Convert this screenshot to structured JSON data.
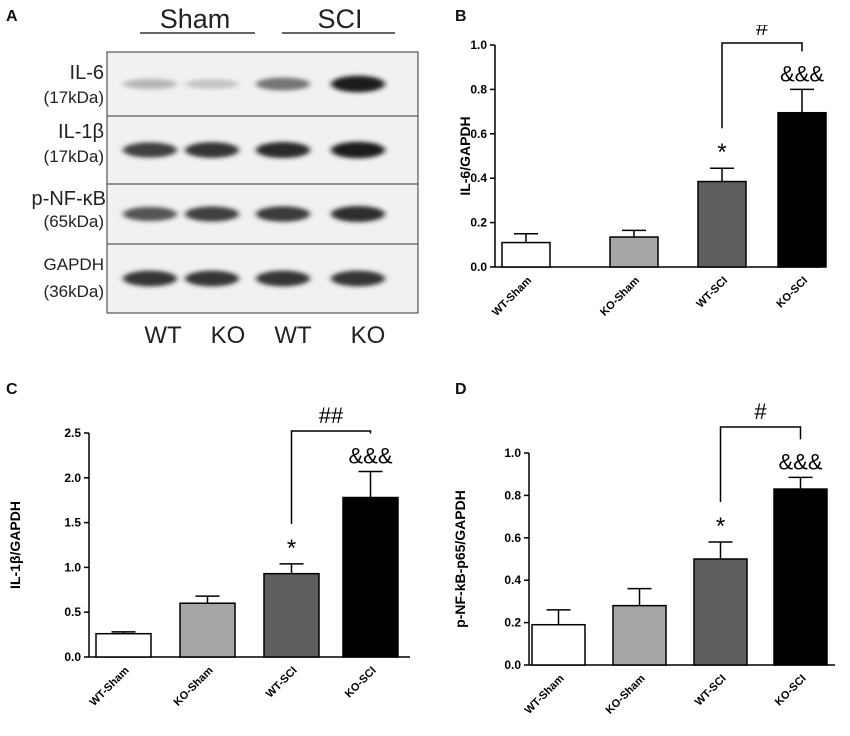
{
  "panels": {
    "a": "A",
    "b": "B",
    "c": "C",
    "d": "D"
  },
  "blot": {
    "groups": [
      "Sham",
      "SCI"
    ],
    "lanes": [
      "WT",
      "KO",
      "WT",
      "KO"
    ],
    "rows": [
      {
        "name": "IL-6",
        "size": "(17kDa)",
        "intensities": [
          0.25,
          0.18,
          0.55,
          0.95
        ]
      },
      {
        "name": "IL-1β",
        "size": "(17kDa)",
        "intensities": [
          0.8,
          0.85,
          0.9,
          0.95
        ]
      },
      {
        "name": "p-NF-κB",
        "size": "(65kDa)",
        "intensities": [
          0.7,
          0.8,
          0.82,
          0.88
        ]
      },
      {
        "name": "GAPDH",
        "size": "(36kDa)",
        "intensities": [
          0.85,
          0.85,
          0.85,
          0.85
        ]
      }
    ]
  },
  "colors": {
    "wt_sham": "#ffffff",
    "ko_sham": "#a6a6a6",
    "wt_sci": "#5e5e5e",
    "ko_sci": "#000000"
  },
  "chart_data": [
    {
      "id": "B",
      "type": "bar",
      "categories": [
        "WT-Sham",
        "KO-Sham",
        "WT-SCI",
        "KO-SCI"
      ],
      "values": [
        0.11,
        0.135,
        0.385,
        0.695
      ],
      "errors": [
        0.04,
        0.03,
        0.06,
        0.105
      ],
      "ylabel": "IL-6/GAPDH",
      "ylim": [
        0,
        1.0
      ],
      "yticks": [
        "0.0",
        "0.2",
        "0.4",
        "0.6",
        "0.8",
        "1.0"
      ],
      "yticks_values": [
        0,
        0.2,
        0.4,
        0.6,
        0.8,
        1.0
      ],
      "star_label": "*",
      "amp_label": "&&&",
      "hash_label": "#"
    },
    {
      "id": "C",
      "type": "bar",
      "categories": [
        "WT-Sham",
        "KO-Sham",
        "WT-SCI",
        "KO-SCI"
      ],
      "values": [
        0.26,
        0.6,
        0.93,
        1.78
      ],
      "errors": [
        0.02,
        0.08,
        0.11,
        0.29
      ],
      "ylabel": "IL-1β/GAPDH",
      "ylim": [
        0,
        2.5
      ],
      "yticks": [
        "0.0",
        "0.5",
        "1.0",
        "1.5",
        "2.0",
        "2.5"
      ],
      "yticks_values": [
        0,
        0.5,
        1.0,
        1.5,
        2.0,
        2.5
      ],
      "star_label": "*",
      "amp_label": "&&&",
      "hash_label": "##"
    },
    {
      "id": "D",
      "type": "bar",
      "categories": [
        "WT-Sham",
        "KO-Sham",
        "WT-SCI",
        "KO-SCI"
      ],
      "values": [
        0.19,
        0.28,
        0.5,
        0.83
      ],
      "errors": [
        0.07,
        0.08,
        0.08,
        0.055
      ],
      "ylabel": "p-NF-kB-p65/GAPDH",
      "ylim": [
        0,
        1.0
      ],
      "yticks": [
        "0.0",
        "0.2",
        "0.4",
        "0.6",
        "0.8",
        "1.0"
      ],
      "yticks_values": [
        0,
        0.2,
        0.4,
        0.6,
        0.8,
        1.0
      ],
      "star_label": "*",
      "amp_label": "&&&",
      "hash_label": "#"
    }
  ]
}
